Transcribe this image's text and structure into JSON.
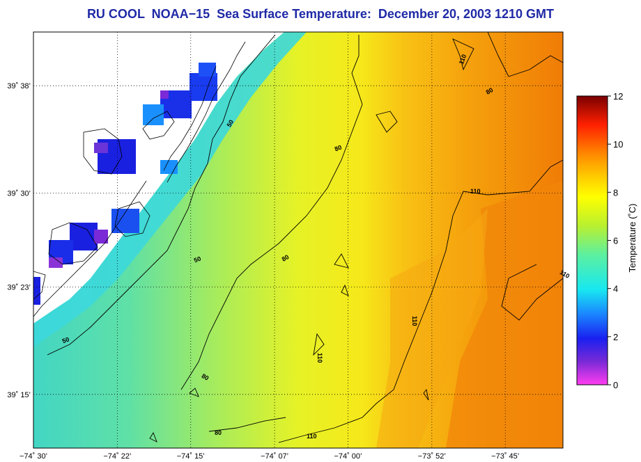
{
  "title": "RU COOL  NOAA−15  Sea Surface Temperature:  December 20, 2003 1210 GMT",
  "map": {
    "lat_labels": [
      {
        "lat": 39.6333,
        "text": "39˚ 38’"
      },
      {
        "lat": 39.5,
        "text": "39˚ 30’"
      },
      {
        "lat": 39.3833,
        "text": "39˚ 23’"
      },
      {
        "lat": 39.25,
        "text": "39˚ 15’"
      }
    ],
    "lon_labels": [
      {
        "lon": -74.5,
        "text": "−74˚ 30’"
      },
      {
        "lon": -74.3667,
        "text": "−74˚ 22’"
      },
      {
        "lon": -74.25,
        "text": "−74˚ 15’"
      },
      {
        "lon": -74.1167,
        "text": "−74˚ 07’"
      },
      {
        "lon": -74.0,
        "text": "−74˚ 00’"
      },
      {
        "lon": -73.8667,
        "text": "−73˚ 52’"
      },
      {
        "lon": -73.75,
        "text": "−73˚ 45’"
      }
    ],
    "contour_labels": [
      "50",
      "50",
      "50",
      "80",
      "80",
      "80",
      "80",
      "110",
      "110",
      "110",
      "110",
      "110",
      "110",
      "80"
    ]
  },
  "colorbar": {
    "label": "Temperature (˚C)",
    "ticks": [
      "0",
      "2",
      "4",
      "6",
      "8",
      "10",
      "12"
    ],
    "min": 0,
    "max": 12
  }
}
